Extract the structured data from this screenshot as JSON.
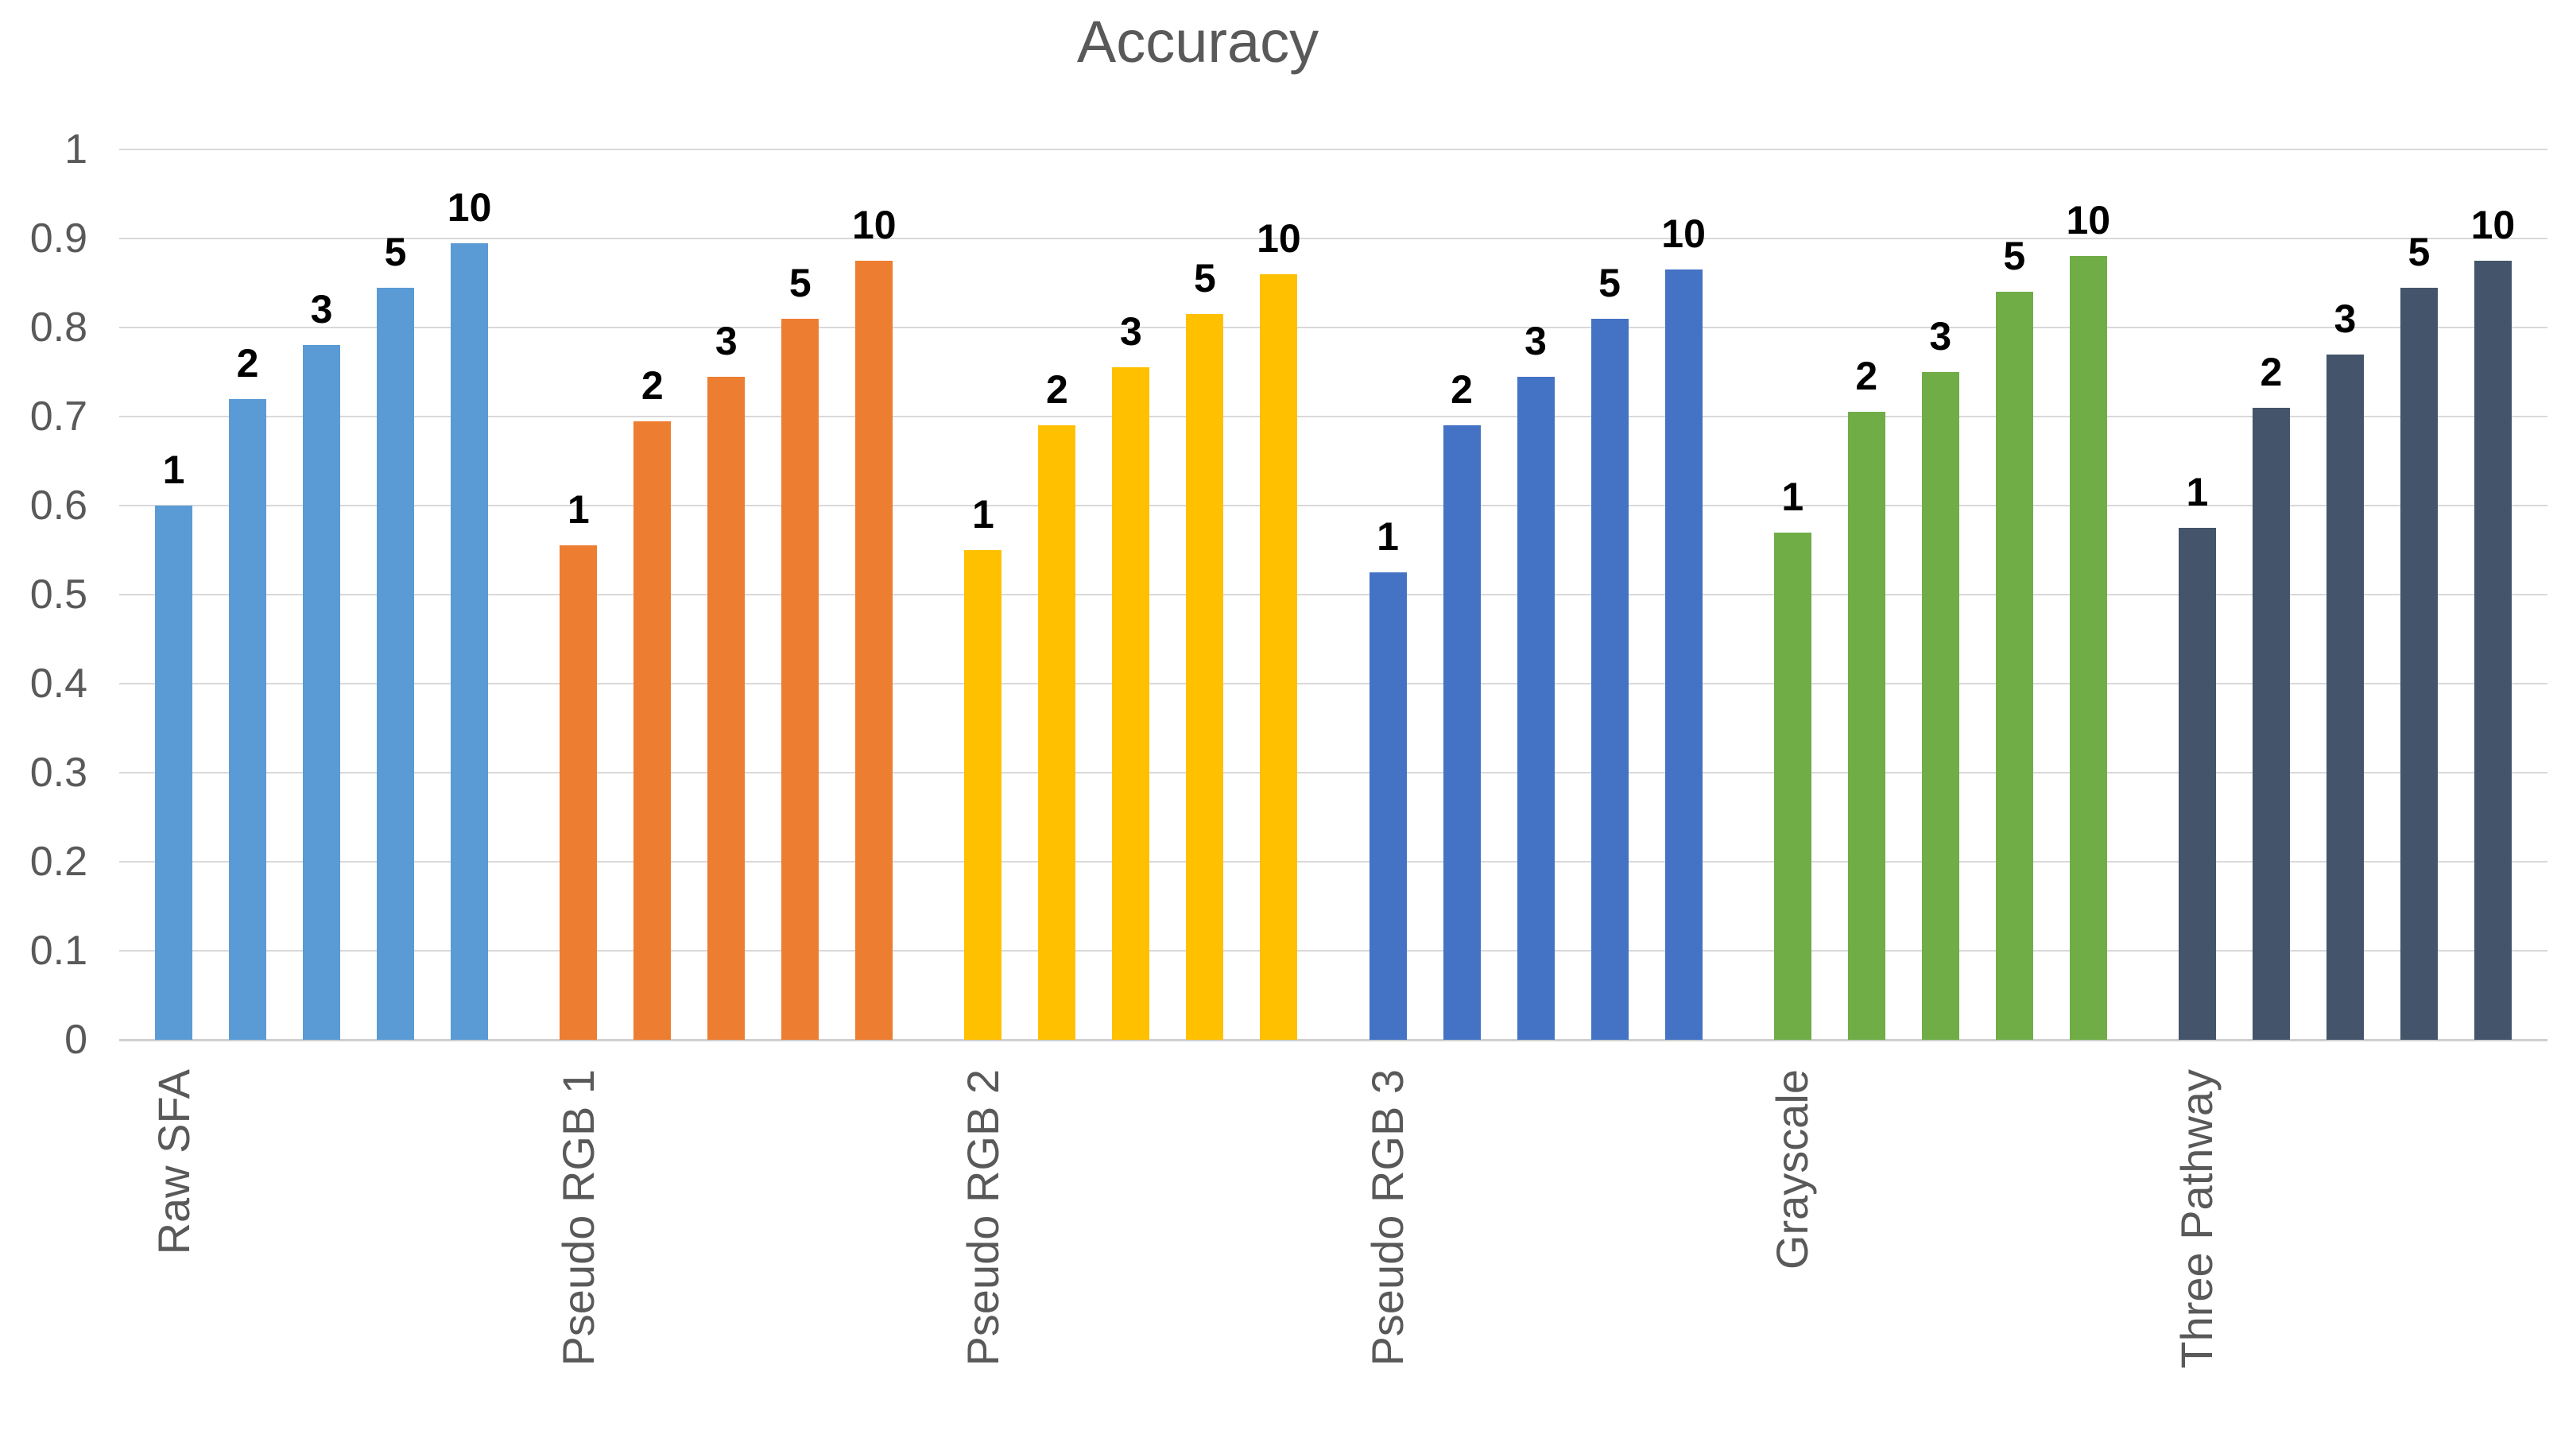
{
  "page": {
    "background_color": "#FFFFFF"
  },
  "chart_data": {
    "type": "bar",
    "title": "Accuracy",
    "xlabel": "",
    "ylabel": "",
    "ylim": [
      0,
      1
    ],
    "ytick_labels": [
      "0",
      "0.1",
      "0.2",
      "0.3",
      "0.4",
      "0.5",
      "0.6",
      "0.7",
      "0.8",
      "0.9",
      "1"
    ],
    "ytick_values": [
      0,
      0.1,
      0.2,
      0.3,
      0.4,
      0.5,
      0.6,
      0.7,
      0.8,
      0.9,
      1
    ],
    "grid": true,
    "legend": "none",
    "bar_labels": [
      "1",
      "2",
      "3",
      "5",
      "10"
    ],
    "categories": [
      "Raw SFA",
      "Pseudo RGB 1",
      "Pseudo RGB 2",
      "Pseudo RGB 3",
      "Grayscale",
      "Three Pathway"
    ],
    "series": [
      {
        "name": "Raw SFA",
        "color": "#5B9BD5",
        "values": [
          0.6,
          0.72,
          0.78,
          0.845,
          0.895
        ]
      },
      {
        "name": "Pseudo RGB 1",
        "color": "#ED7D31",
        "values": [
          0.555,
          0.695,
          0.745,
          0.81,
          0.875
        ]
      },
      {
        "name": "Pseudo RGB 2",
        "color": "#FFC000",
        "values": [
          0.55,
          0.69,
          0.755,
          0.815,
          0.86
        ]
      },
      {
        "name": "Pseudo RGB 3",
        "color": "#4472C4",
        "values": [
          0.525,
          0.69,
          0.745,
          0.81,
          0.865
        ]
      },
      {
        "name": "Grayscale",
        "color": "#70AD47",
        "values": [
          0.57,
          0.705,
          0.75,
          0.84,
          0.88
        ]
      },
      {
        "name": "Three Pathway",
        "color": "#44546A",
        "values": [
          0.575,
          0.71,
          0.77,
          0.845,
          0.875
        ]
      }
    ],
    "colors": {
      "axis_text": "#595959",
      "data_label": "#000000",
      "gridline": "#D9D9D9",
      "title_text": "#595959"
    }
  }
}
